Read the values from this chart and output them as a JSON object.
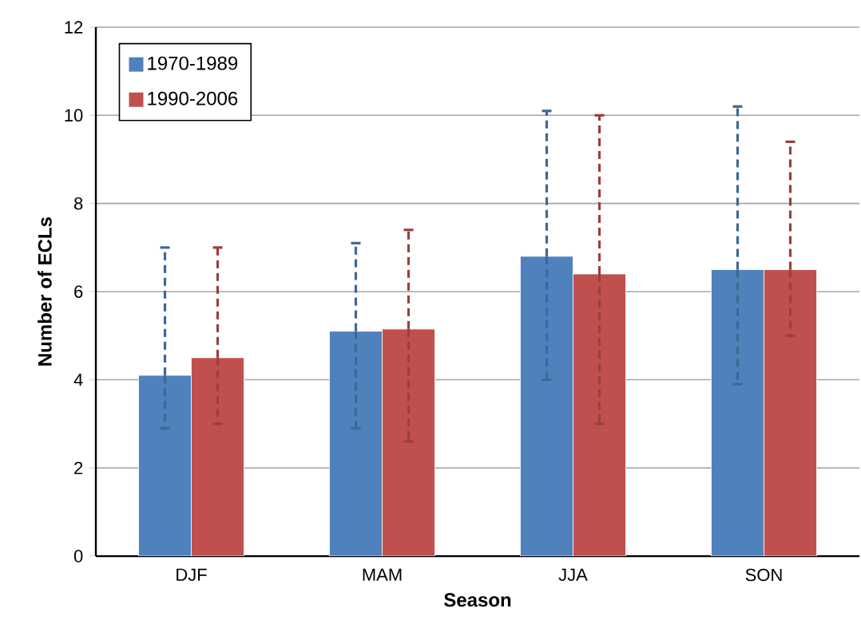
{
  "chart_data": {
    "type": "bar",
    "xlabel": "Season",
    "ylabel": "Number of ECLs",
    "categories": [
      "DJF",
      "MAM",
      "JJA",
      "SON"
    ],
    "series": [
      {
        "name": "1970-1989",
        "color": "#4f81bd",
        "values": [
          4.1,
          5.1,
          6.8,
          6.5
        ],
        "errors": [
          [
            2.9,
            7.0
          ],
          [
            2.9,
            7.1
          ],
          [
            4.0,
            10.1
          ],
          [
            3.9,
            10.2
          ]
        ]
      },
      {
        "name": "1990-2006",
        "color": "#c0504d",
        "values": [
          4.5,
          5.15,
          6.4,
          6.5
        ],
        "errors": [
          [
            3.0,
            7.0
          ],
          [
            2.6,
            7.4
          ],
          [
            3.0,
            10.0
          ],
          [
            5.0,
            9.4
          ]
        ]
      }
    ],
    "ylim": [
      0,
      12
    ],
    "yticks": [
      0,
      2,
      4,
      6,
      8,
      10,
      12
    ],
    "grid": "y",
    "legend": "top left"
  }
}
